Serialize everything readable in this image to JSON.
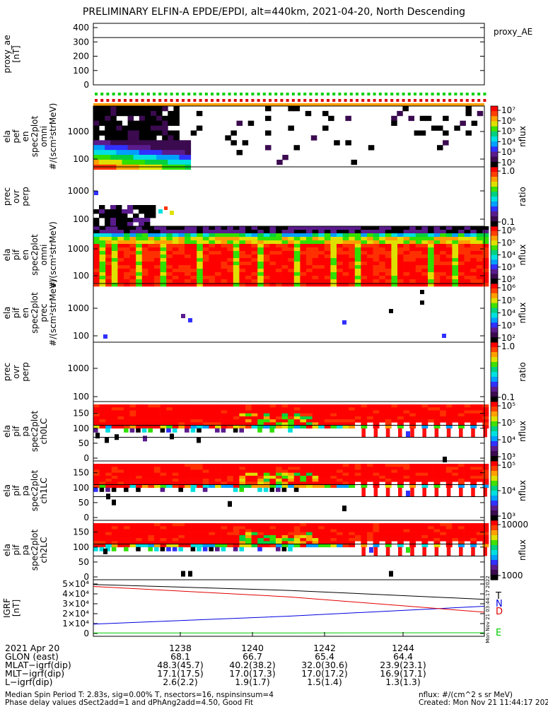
{
  "title": "PRELIMINARY ELFIN-A EPDE/EPDI, alt=440km, 2021-04-20, North Descending",
  "chart_data": [
    {
      "type": "line",
      "panel": "proxy_ae",
      "ylabel": [
        "proxy_ae",
        "[nT]"
      ],
      "ylim": [
        0,
        400
      ],
      "yticks": [
        "0",
        "100",
        "200",
        "300",
        "400"
      ],
      "series": [
        {
          "name": "proxy_AE",
          "values": [
            330,
            330
          ]
        }
      ]
    },
    {
      "type": "heatmap",
      "panel": "epde-omni",
      "ylabel": [
        "ela",
        "pef",
        "en",
        "spec2plot",
        "omni",
        "#/(scm²strMeV)"
      ],
      "yticks": [
        "100",
        "1000"
      ],
      "colorbar": {
        "label": "nflux",
        "ticks": [
          "10⁷",
          "10⁶",
          "10⁵",
          "10⁴",
          "10³",
          "10²"
        ],
        "scale": "log"
      }
    },
    {
      "type": "heatmap",
      "panel": "epde-ratio",
      "ylabel": [
        "prec",
        "ovr",
        "perp"
      ],
      "yticks": [
        "100",
        "1000"
      ],
      "colorbar": {
        "label": "ratio",
        "ticks": [
          "1.0",
          "0.1"
        ],
        "scale": "log"
      }
    },
    {
      "type": "heatmap",
      "panel": "epdi-omni",
      "ylabel": [
        "ela",
        "pif",
        "en",
        "spec2plot",
        "omni",
        "#/(scm²strMeV)"
      ],
      "yticks": [
        "100",
        "1000"
      ],
      "colorbar": {
        "label": "nflux",
        "ticks": [
          "10⁶",
          "10⁵",
          "10⁴",
          "10³",
          "10²"
        ],
        "scale": "log"
      }
    },
    {
      "type": "heatmap",
      "panel": "epdi-prec",
      "ylabel": [
        "ela",
        "pif",
        "en",
        "spec2plot",
        "prec",
        "#/(scm²strMeV)"
      ],
      "yticks": [
        "100",
        "1000"
      ],
      "colorbar": {
        "label": "nflux",
        "ticks": [
          "10⁶",
          "10⁵",
          "10⁴",
          "10³",
          "10²"
        ],
        "scale": "log"
      }
    },
    {
      "type": "heatmap",
      "panel": "epdi-ratio",
      "ylabel": [
        "prec",
        "ovr",
        "perp"
      ],
      "yticks": [
        "100",
        "1000"
      ],
      "colorbar": {
        "label": "ratio",
        "ticks": [
          "1.0",
          "0.1"
        ],
        "scale": "log"
      }
    },
    {
      "type": "heatmap",
      "panel": "pa-ch0",
      "ylabel": [
        "ela",
        "pif",
        "pa",
        "spec2plot",
        "ch0LC"
      ],
      "yticks": [
        "0",
        "50",
        "100",
        "150"
      ],
      "colorbar": {
        "label": "nflux",
        "ticks": [
          "10⁵",
          "10⁵",
          "10⁴",
          "10³"
        ],
        "scale": "log"
      }
    },
    {
      "type": "heatmap",
      "panel": "pa-ch1",
      "ylabel": [
        "ela",
        "pif",
        "pa",
        "spec2plot",
        "ch1LC"
      ],
      "yticks": [
        "0",
        "50",
        "100",
        "150"
      ],
      "colorbar": {
        "label": "nflux",
        "ticks": [
          "10⁵",
          "10⁴",
          "10³"
        ],
        "scale": "log"
      }
    },
    {
      "type": "heatmap",
      "panel": "pa-ch2",
      "ylabel": [
        "ela",
        "pif",
        "pa",
        "spec2plot",
        "ch2LC"
      ],
      "yticks": [
        "0",
        "50",
        "100",
        "150"
      ],
      "colorbar": {
        "label": "nflux",
        "ticks": [
          "10000",
          "1000"
        ],
        "scale": "log"
      }
    },
    {
      "type": "line",
      "panel": "igrf",
      "ylabel": [
        "IGRF",
        "[nT]"
      ],
      "ylim": [
        0,
        50000
      ],
      "yticks": [
        "0",
        "1×10⁴",
        "2×10⁴",
        "3×10⁴",
        "4×10⁴",
        "5×10⁴"
      ],
      "series": [
        {
          "name": "T",
          "color": "#000000",
          "values": [
            49500,
            43500,
            34500
          ]
        },
        {
          "name": "N",
          "color": "#0000e0",
          "values": [
            9500,
            17500,
            27500
          ]
        },
        {
          "name": "D",
          "color": "#e00000",
          "values": [
            47500,
            37000,
            21500
          ]
        },
        {
          "name": "E",
          "color": "#00cc00",
          "values": [
            500,
            600,
            700
          ]
        }
      ]
    }
  ],
  "stamp": "Mon Nov 21 03:44:17 2022",
  "ephemeris": {
    "labels": [
      "2021 Apr 20",
      "GLON (east)",
      "MLAT−igrf(dip)",
      "MLT−igrf(dip)",
      "L−igrf(dip)"
    ],
    "columns": [
      [
        "1238",
        "68.1",
        "48.3(45.7)",
        "17.1(17.5)",
        "2.6(2.2)"
      ],
      [
        "1240",
        "66.7",
        "40.2(38.2)",
        "17.0(17.3)",
        "1.9(1.7)"
      ],
      [
        "1242",
        "65.4",
        "32.0(30.6)",
        "17.0(17.2)",
        "1.5(1.4)"
      ],
      [
        "1244",
        "64.4",
        "23.9(23.1)",
        "16.9(17.1)",
        "1.3(1.3)"
      ]
    ]
  },
  "footer": {
    "left1": "Median Spin Period T: 2.83s, sig=0.00% T, nsectors=16, nspinsinsum=4",
    "left2": "Phase delay values dSect2add=1 and dPhAng2add=4.50, Good Fit",
    "right1": "nflux: #/(cm^2 s sr MeV)",
    "right2": "Created: Mon Nov 21 11:44:17 2022"
  },
  "colors": {
    "rainbow": [
      "#ffffff",
      "#000000",
      "#3b0a4f",
      "#5a1b8c",
      "#3030ff",
      "#00a0ff",
      "#00e0e0",
      "#00d040",
      "#30e000",
      "#e0e000",
      "#ffa000",
      "#ff3000",
      "#ff0000"
    ]
  }
}
